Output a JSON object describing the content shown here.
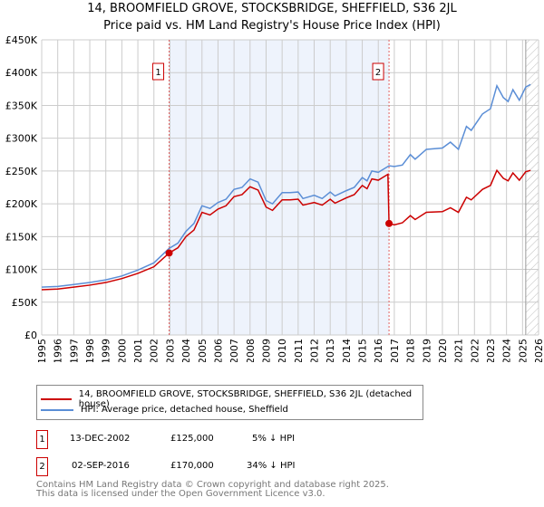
{
  "chart_data": {
    "type": "line",
    "title": "14, BROOMFIELD GROVE, STOCKSBRIDGE, SHEFFIELD, S36 2JL",
    "subtitle": "Price paid vs. HM Land Registry's House Price Index (HPI)",
    "xlim": [
      1995,
      2026
    ],
    "ylim": [
      0,
      450000
    ],
    "yticks": [
      {
        "v": 0,
        "label": "£0"
      },
      {
        "v": 50000,
        "label": "£50K"
      },
      {
        "v": 100000,
        "label": "£100K"
      },
      {
        "v": 150000,
        "label": "£150K"
      },
      {
        "v": 200000,
        "label": "£200K"
      },
      {
        "v": 250000,
        "label": "£250K"
      },
      {
        "v": 300000,
        "label": "£300K"
      },
      {
        "v": 350000,
        "label": "£350K"
      },
      {
        "v": 400000,
        "label": "£400K"
      },
      {
        "v": 450000,
        "label": "£450K"
      }
    ],
    "xticks": [
      "1995",
      "1996",
      "1997",
      "1998",
      "1999",
      "2000",
      "2001",
      "2002",
      "2003",
      "2004",
      "2005",
      "2006",
      "2007",
      "2008",
      "2009",
      "2010",
      "2011",
      "2012",
      "2013",
      "2014",
      "2015",
      "2016",
      "2017",
      "2018",
      "2019",
      "2020",
      "2021",
      "2022",
      "2023",
      "2024",
      "2025",
      "2026"
    ],
    "shaded_range": [
      2002.95,
      2016.67
    ],
    "forecast_from": 2025.2,
    "series": [
      {
        "name": "14, BROOMFIELD GROVE, STOCKSBRIDGE, SHEFFIELD, S36 2JL (detached house)",
        "color": "#cc0000",
        "x": [
          1995,
          1996,
          1997,
          1998,
          1999,
          2000,
          2001,
          2002,
          2002.95,
          2003.5,
          2004,
          2004.5,
          2005,
          2005.5,
          2006,
          2006.5,
          2007,
          2007.5,
          2008,
          2008.5,
          2009,
          2009.4,
          2010,
          2010.5,
          2011,
          2011.3,
          2012,
          2012.5,
          2013,
          2013.3,
          2014,
          2014.5,
          2015,
          2015.3,
          2015.6,
          2016,
          2016.6,
          2016.67,
          2017,
          2017.5,
          2018,
          2018.3,
          2019,
          2020,
          2020.5,
          2021,
          2021.5,
          2021.8,
          2022.5,
          2023,
          2023.4,
          2023.8,
          2024.1,
          2024.4,
          2024.8,
          2025.2,
          2025.5
        ],
        "y": [
          69,
          70,
          73,
          76,
          80,
          86,
          94,
          104,
          125,
          133,
          150,
          160,
          187,
          183,
          192,
          197,
          211,
          214,
          226,
          221,
          195,
          190,
          206,
          206,
          207,
          198,
          202,
          198,
          207,
          201,
          209,
          214,
          228,
          223,
          238,
          236,
          245,
          170,
          168,
          171,
          182,
          176,
          187,
          188,
          194,
          187,
          210,
          206,
          222,
          228,
          251,
          239,
          235,
          247,
          236,
          249,
          251
        ]
      },
      {
        "name": "HPI: Average price, detached house, Sheffield",
        "color": "#5b8ed6",
        "x": [
          1995,
          1996,
          1997,
          1998,
          1999,
          2000,
          2001,
          2002,
          2002.95,
          2003.5,
          2004,
          2004.5,
          2005,
          2005.5,
          2006,
          2006.5,
          2007,
          2007.5,
          2008,
          2008.5,
          2009,
          2009.4,
          2010,
          2010.5,
          2011,
          2011.3,
          2012,
          2012.5,
          2013,
          2013.3,
          2014,
          2014.5,
          2015,
          2015.3,
          2015.6,
          2016,
          2016.67,
          2017,
          2017.5,
          2018,
          2018.3,
          2019,
          2020,
          2020.5,
          2021,
          2021.5,
          2021.8,
          2022.5,
          2023,
          2023.4,
          2023.8,
          2024.1,
          2024.4,
          2024.8,
          2025.2,
          2025.5
        ],
        "y": [
          73,
          74,
          77,
          80,
          84,
          90,
          99,
          110,
          132,
          140,
          158,
          170,
          197,
          193,
          202,
          207,
          222,
          225,
          238,
          233,
          205,
          200,
          217,
          217,
          218,
          208,
          213,
          208,
          218,
          212,
          220,
          225,
          240,
          235,
          250,
          248,
          258,
          257,
          259,
          275,
          268,
          283,
          285,
          294,
          283,
          318,
          312,
          337,
          345,
          380,
          362,
          356,
          374,
          358,
          378,
          382
        ]
      }
    ],
    "y_units": "thousands GBP",
    "sales": [
      {
        "id": "1",
        "x": 2002.95,
        "y": 125,
        "date": "13-DEC-2002",
        "price": "£125,000",
        "hpi": "5% ↓ HPI"
      },
      {
        "id": "2",
        "x": 2016.67,
        "y": 170,
        "date": "02-SEP-2016",
        "price": "£170,000",
        "hpi": "34% ↓ HPI"
      }
    ],
    "legend_placement": "below"
  },
  "footer": {
    "line1": "Contains HM Land Registry data © Crown copyright and database right 2025.",
    "line2": "This data is licensed under the Open Government Licence v3.0."
  }
}
